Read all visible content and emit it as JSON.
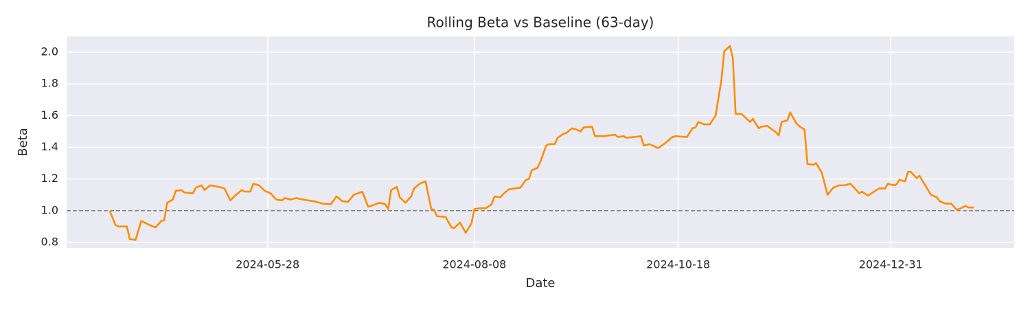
{
  "chart_data": {
    "type": "line",
    "title": "Rolling Beta vs Baseline (63-day)",
    "x_label": "Date",
    "y_label": "Beta",
    "color": "#ff8c00",
    "grid": true,
    "baseline": {
      "value": 1,
      "color": "#808080"
    },
    "xlim": [
      "2024-03-19",
      "2025-02-12"
    ],
    "xticks": [
      "2024-05-28",
      "2024-08-08",
      "2024-10-18",
      "2024-12-31"
    ],
    "ylim": [
      0.765,
      2.1
    ],
    "yticks": [
      0.8,
      {
        "value": 1,
        "label": "1.0"
      },
      1.2,
      1.4,
      1.6,
      1.8,
      {
        "value": 2,
        "label": "2.0"
      }
    ],
    "x": [
      "2024-04-03",
      "2024-04-05",
      "2024-04-06",
      "2024-04-09",
      "2024-04-10",
      "2024-04-12",
      "2024-04-14",
      "2024-04-18",
      "2024-04-19",
      "2024-04-21",
      "2024-04-22",
      "2024-04-23",
      "2024-04-25",
      "2024-04-26",
      "2024-04-28",
      "2024-04-29",
      "2024-05-02",
      "2024-05-03",
      "2024-05-05",
      "2024-05-06",
      "2024-05-08",
      "2024-05-11",
      "2024-05-13",
      "2024-05-15",
      "2024-05-17",
      "2024-05-19",
      "2024-05-20",
      "2024-05-22",
      "2024-05-23",
      "2024-05-25",
      "2024-05-27",
      "2024-05-29",
      "2024-05-31",
      "2024-06-02",
      "2024-06-03",
      "2024-06-05",
      "2024-06-07",
      "2024-06-08",
      "2024-06-11",
      "2024-06-13",
      "2024-06-16",
      "2024-06-19",
      "2024-06-21",
      "2024-06-23",
      "2024-06-25",
      "2024-06-27",
      "2024-06-30",
      "2024-07-02",
      "2024-07-03",
      "2024-07-06",
      "2024-07-08",
      "2024-07-09",
      "2024-07-10",
      "2024-07-12",
      "2024-07-13",
      "2024-07-15",
      "2024-07-17",
      "2024-07-18",
      "2024-07-20",
      "2024-07-22",
      "2024-07-24",
      "2024-07-25",
      "2024-07-26",
      "2024-07-29",
      "2024-07-31",
      "2024-08-01",
      "2024-08-03",
      "2024-08-05",
      "2024-08-07",
      "2024-08-08",
      "2024-08-10",
      "2024-08-12",
      "2024-08-14",
      "2024-08-15",
      "2024-08-17",
      "2024-08-19",
      "2024-08-20",
      "2024-08-22",
      "2024-08-24",
      "2024-08-26",
      "2024-08-27",
      "2024-08-28",
      "2024-08-30",
      "2024-08-31",
      "2024-09-02",
      "2024-09-03",
      "2024-09-05",
      "2024-09-06",
      "2024-09-08",
      "2024-09-09",
      "2024-09-11",
      "2024-09-12",
      "2024-09-14",
      "2024-09-15",
      "2024-09-18",
      "2024-09-19",
      "2024-09-22",
      "2024-09-24",
      "2024-09-26",
      "2024-09-27",
      "2024-09-29",
      "2024-09-30",
      "2024-10-05",
      "2024-10-06",
      "2024-10-08",
      "2024-10-11",
      "2024-10-13",
      "2024-10-16",
      "2024-10-17",
      "2024-10-21",
      "2024-10-23",
      "2024-10-24",
      "2024-10-25",
      "2024-10-27",
      "2024-10-29",
      "2024-10-31",
      "2024-11-02",
      "2024-11-03",
      "2024-11-05",
      "2024-11-06",
      "2024-11-07",
      "2024-11-09",
      "2024-11-10",
      "2024-11-12",
      "2024-11-13",
      "2024-11-15",
      "2024-11-16",
      "2024-11-18",
      "2024-11-21",
      "2024-11-22",
      "2024-11-23",
      "2024-11-25",
      "2024-11-26",
      "2024-11-28",
      "2024-11-29",
      "2024-12-01",
      "2024-12-02",
      "2024-12-04",
      "2024-12-05",
      "2024-12-07",
      "2024-12-09",
      "2024-12-11",
      "2024-12-13",
      "2024-12-15",
      "2024-12-17",
      "2024-12-18",
      "2024-12-20",
      "2024-12-21",
      "2024-12-23",
      "2024-12-24",
      "2024-12-26",
      "2024-12-27",
      "2024-12-29",
      "2024-12-30",
      "2025-01-01",
      "2025-01-02",
      "2025-01-03",
      "2025-01-05",
      "2025-01-06",
      "2025-01-07",
      "2025-01-09",
      "2025-01-10",
      "2025-01-12",
      "2025-01-14",
      "2025-01-16",
      "2025-01-17",
      "2025-01-19",
      "2025-01-21",
      "2025-01-23",
      "2025-01-25",
      "2025-01-26",
      "2025-01-27",
      "2025-01-29"
    ],
    "values": [
      1.0,
      0.91,
      0.9,
      0.9,
      0.82,
      0.815,
      0.935,
      0.9,
      0.895,
      0.935,
      0.94,
      1.05,
      1.07,
      1.125,
      1.13,
      1.115,
      1.11,
      1.145,
      1.16,
      1.13,
      1.16,
      1.15,
      1.14,
      1.065,
      1.1,
      1.13,
      1.12,
      1.12,
      1.17,
      1.16,
      1.125,
      1.11,
      1.07,
      1.065,
      1.08,
      1.07,
      1.08,
      1.075,
      1.065,
      1.06,
      1.045,
      1.04,
      1.09,
      1.06,
      1.055,
      1.1,
      1.12,
      1.025,
      1.03,
      1.05,
      1.04,
      1.01,
      1.13,
      1.15,
      1.085,
      1.05,
      1.09,
      1.14,
      1.17,
      1.185,
      1.01,
      1.005,
      0.965,
      0.96,
      0.895,
      0.89,
      0.925,
      0.86,
      0.92,
      1.01,
      1.015,
      1.015,
      1.04,
      1.09,
      1.085,
      1.12,
      1.135,
      1.14,
      1.145,
      1.195,
      1.2,
      1.255,
      1.27,
      1.31,
      1.41,
      1.42,
      1.42,
      1.46,
      1.485,
      1.49,
      1.52,
      1.515,
      1.5,
      1.525,
      1.53,
      1.47,
      1.47,
      1.475,
      1.48,
      1.465,
      1.47,
      1.46,
      1.47,
      1.41,
      1.42,
      1.395,
      1.42,
      1.465,
      1.47,
      1.465,
      1.52,
      1.525,
      1.56,
      1.545,
      1.545,
      1.6,
      1.82,
      2.005,
      2.04,
      1.965,
      1.61,
      1.61,
      1.595,
      1.56,
      1.58,
      1.52,
      1.53,
      1.535,
      1.495,
      1.475,
      1.56,
      1.57,
      1.62,
      1.555,
      1.535,
      1.51,
      1.295,
      1.29,
      1.3,
      1.24,
      1.1,
      1.145,
      1.16,
      1.16,
      1.17,
      1.15,
      1.11,
      1.12,
      1.095,
      1.105,
      1.13,
      1.14,
      1.14,
      1.17,
      1.16,
      1.165,
      1.195,
      1.185,
      1.245,
      1.245,
      1.205,
      1.22,
      1.16,
      1.1,
      1.085,
      1.06,
      1.045,
      1.045,
      1.005,
      1.02,
      1.03,
      1.02,
      1.02
    ]
  }
}
